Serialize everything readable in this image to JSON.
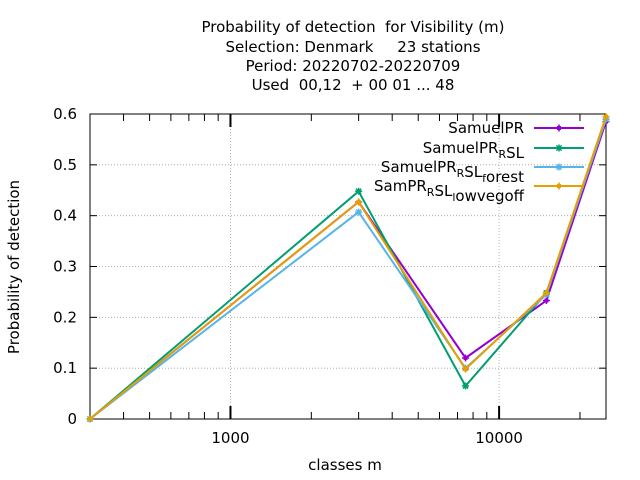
{
  "chart_data": {
    "type": "line",
    "title_lines": [
      "Probability of detection  for Visibility (m)",
      "Selection: Denmark     23 stations",
      "Period: 20220702-20220709",
      "Used  00,12  + 00 01 ... 48"
    ],
    "xlabel": "classes m",
    "ylabel": "Probability of detection",
    "x_scale": "log",
    "xlim": [
      300,
      25000
    ],
    "ylim": [
      0,
      0.6
    ],
    "x_ticks": [
      1000,
      10000
    ],
    "x_tick_labels": [
      "1000",
      "10000"
    ],
    "y_ticks": [
      0,
      0.1,
      0.2,
      0.3,
      0.4,
      0.5,
      0.6
    ],
    "y_tick_labels": [
      "0",
      "0.1",
      "0.2",
      "0.3",
      "0.4",
      "0.5",
      "0.6"
    ],
    "grid": true,
    "legend_position": "top-right",
    "x": [
      300,
      3000,
      7500,
      15000,
      25000
    ],
    "series": [
      {
        "name": "SamuelPR",
        "legend_parts": [
          [
            "SamuelPR",
            ""
          ]
        ],
        "color": "#9400d3",
        "marker": "plus",
        "values": [
          0,
          0.427,
          0.12,
          0.233,
          0.585
        ]
      },
      {
        "name": "SamuelPR_RSL",
        "legend_parts": [
          [
            "SamuelPR",
            ""
          ],
          [
            "R",
            "sub"
          ],
          [
            "SL",
            ""
          ]
        ],
        "color": "#009e73",
        "marker": "star",
        "values": [
          0,
          0.448,
          0.065,
          0.248,
          0.59
        ]
      },
      {
        "name": "SamuelPR_RSL_forest",
        "legend_parts": [
          [
            "SamuelPR",
            ""
          ],
          [
            "R",
            "sub"
          ],
          [
            "SL",
            ""
          ],
          [
            "f",
            "sub"
          ],
          [
            "orest",
            ""
          ]
        ],
        "color": "#56b4e9",
        "marker": "asterisk",
        "values": [
          0,
          0.407,
          0.1,
          0.245,
          0.59
        ]
      },
      {
        "name": "SamPR_RSL_lowvegoff",
        "legend_parts": [
          [
            "SamPR",
            ""
          ],
          [
            "R",
            "sub"
          ],
          [
            "SL",
            ""
          ],
          [
            "l",
            "sub"
          ],
          [
            "owvegoff",
            ""
          ]
        ],
        "color": "#e69f00",
        "marker": "plus",
        "values": [
          0,
          0.427,
          0.098,
          0.248,
          0.595
        ]
      }
    ]
  }
}
